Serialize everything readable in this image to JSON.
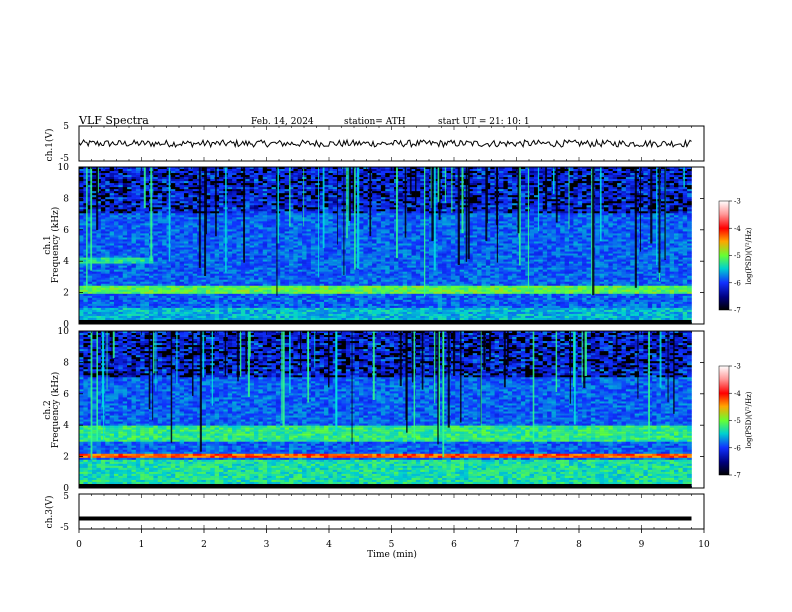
{
  "header": {
    "title": "VLF  Spectra",
    "date": "Feb. 14, 2024",
    "station": "station= ATH",
    "start": "start  UT  =    21: 10: 1"
  },
  "colorbar": {
    "label": "log(PSD)(V²/Hz)",
    "ticks": [
      "-3",
      "-4",
      "-5",
      "-6",
      "-7"
    ]
  },
  "chart_data": [
    {
      "type": "line",
      "panel": "ch1-waveform",
      "ylabel": "ch.1(V)",
      "ylim": [
        -5,
        5
      ],
      "yticks": [
        "5",
        "-5"
      ],
      "xlim": [
        0,
        10
      ],
      "description_values": {
        "mean_level": 0,
        "amplitude": 1
      }
    },
    {
      "type": "heatmap",
      "panel": "ch1-spectrogram",
      "ylabel": "Frequency  (kHz)",
      "channel_label": "ch.1",
      "ylim": [
        0,
        10
      ],
      "yticks": [
        "10",
        "8",
        "6",
        "4",
        "2",
        "0"
      ],
      "xlim": [
        0,
        10
      ],
      "data_end_min": 9.8,
      "zlim": [
        -7,
        -3
      ]
    },
    {
      "type": "heatmap",
      "panel": "ch2-spectrogram",
      "ylabel": "Frequency  (kHz)",
      "channel_label": "ch.2",
      "ylim": [
        0,
        10
      ],
      "yticks": [
        "10",
        "8",
        "6",
        "4",
        "2",
        "0"
      ],
      "xlim": [
        0,
        10
      ],
      "data_end_min": 9.8,
      "zlim": [
        -7,
        -3
      ]
    },
    {
      "type": "line",
      "panel": "ch3-waveform",
      "ylabel": "ch.3(V)",
      "ylim": [
        -5,
        5
      ],
      "yticks": [
        "5",
        "-5"
      ],
      "xlim": [
        0,
        10
      ],
      "description_values": {
        "mean_level": -2,
        "amplitude": 0
      }
    }
  ],
  "xaxis": {
    "label": "Time  (min)",
    "ticks": [
      "0",
      "1",
      "2",
      "3",
      "4",
      "5",
      "6",
      "7",
      "8",
      "9",
      "10"
    ]
  }
}
